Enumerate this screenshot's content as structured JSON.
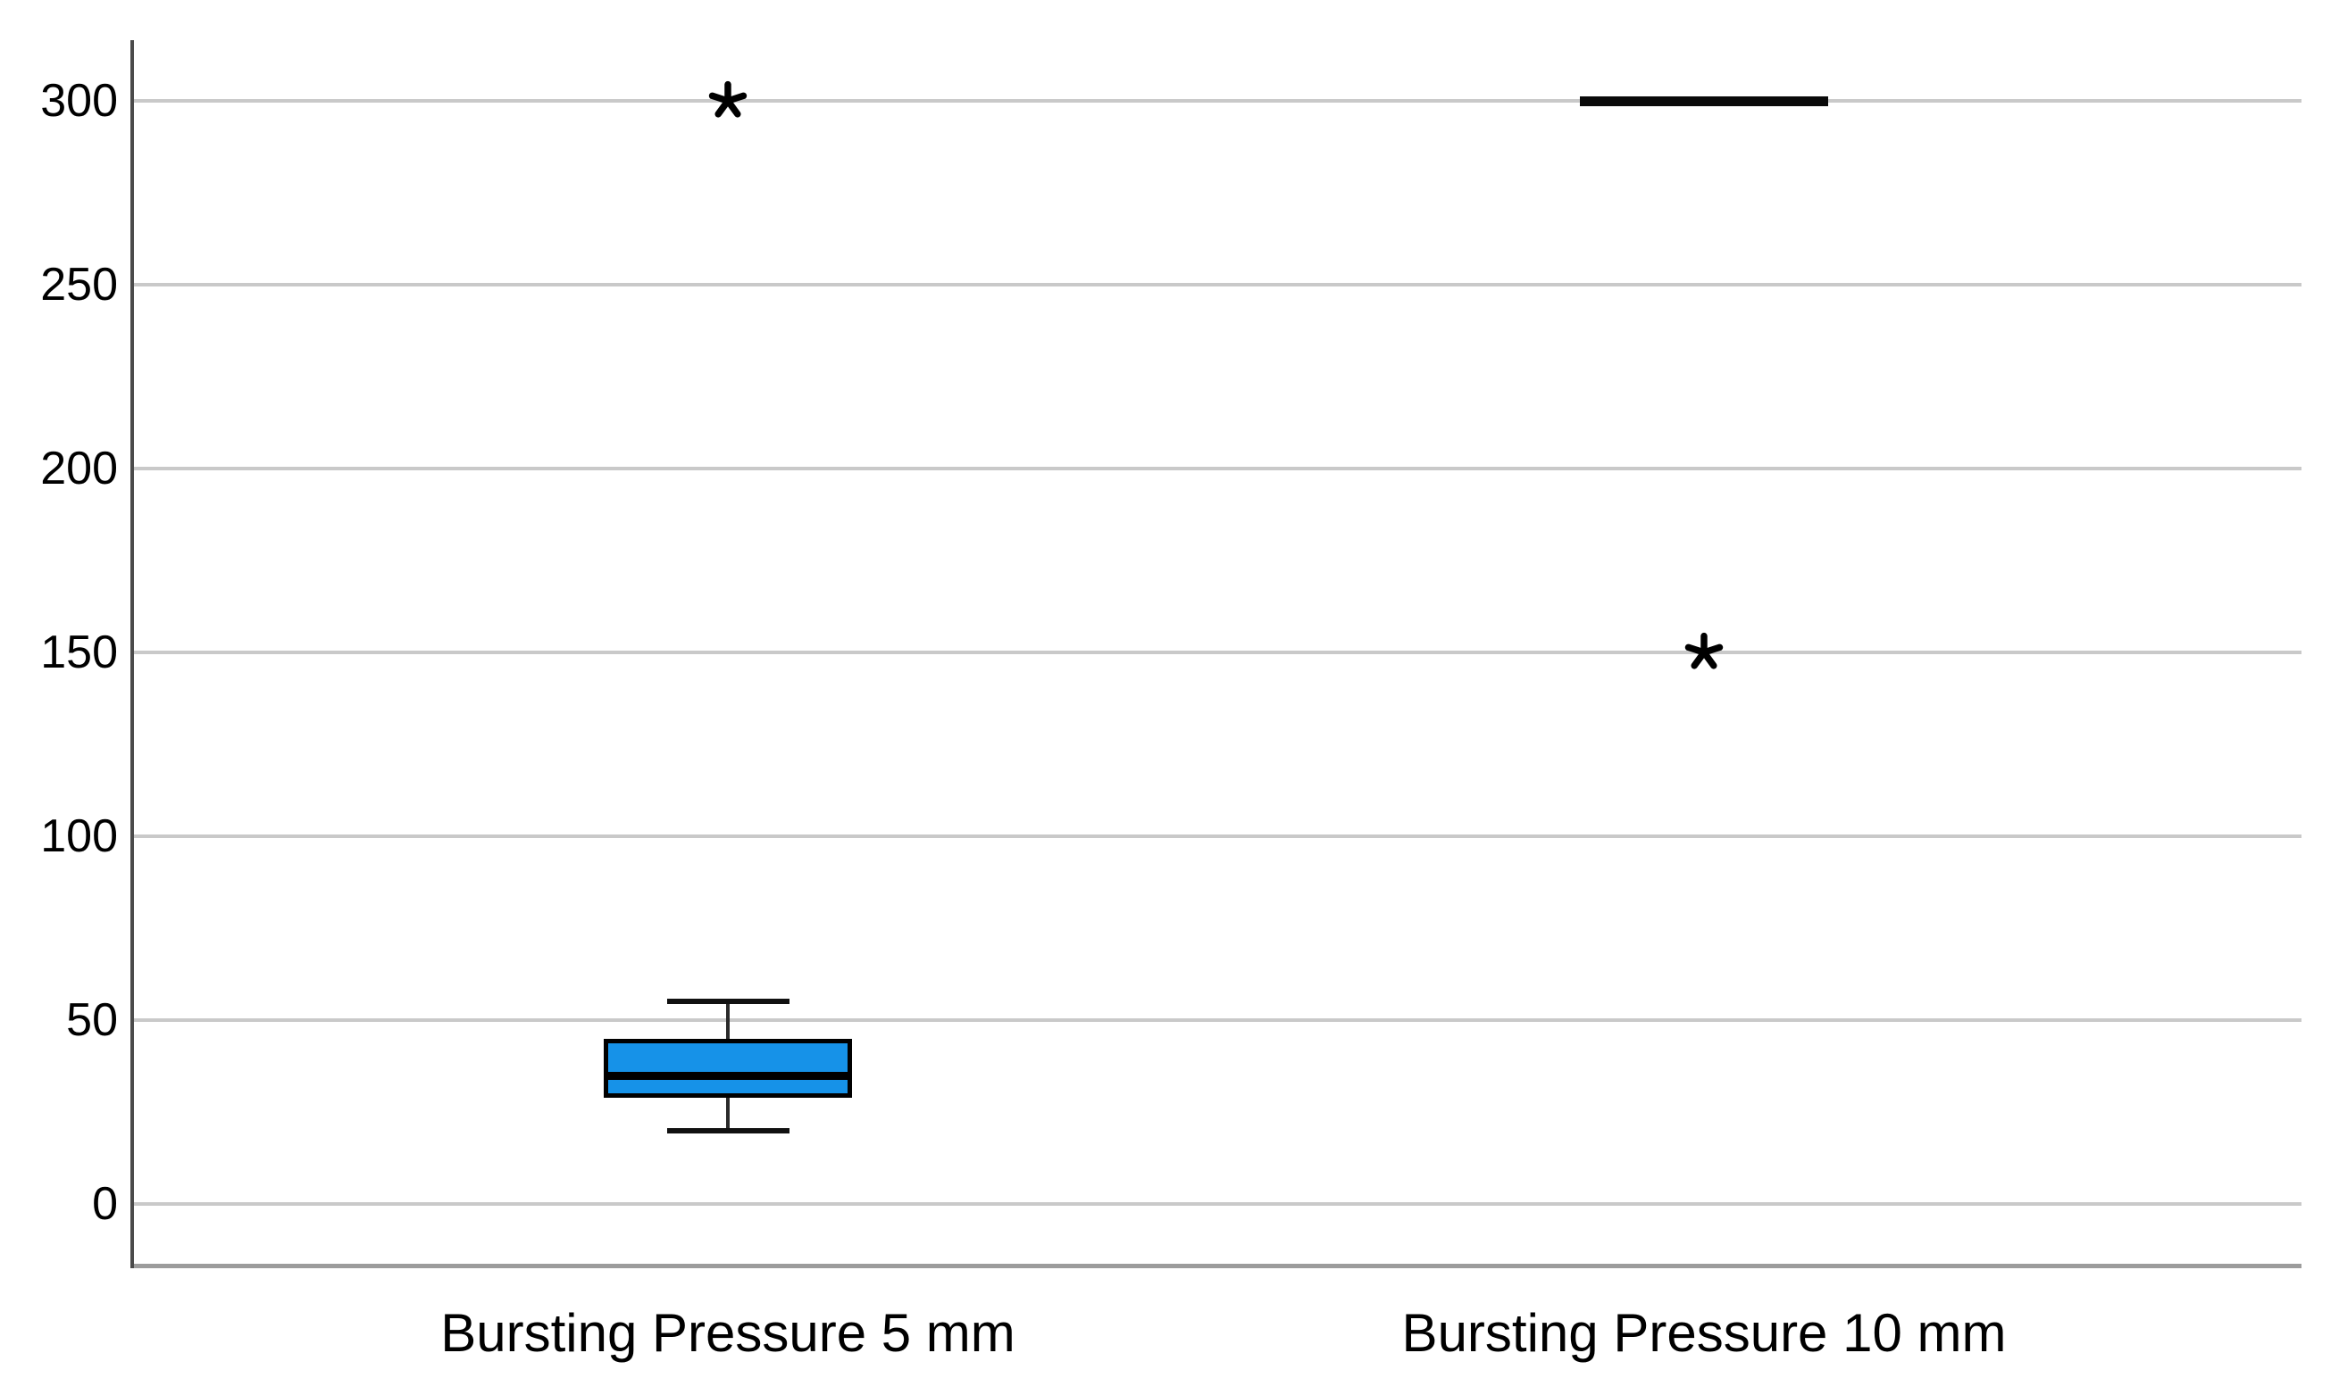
{
  "chart_data": {
    "type": "boxplot",
    "title": "",
    "xlabel": "",
    "ylabel": "",
    "ylim": [
      -20,
      320
    ],
    "yticks": [
      300,
      250,
      200,
      150,
      100,
      50,
      0
    ],
    "grid": "horizontal",
    "legend": "none",
    "categories": [
      "Bursting Pressure 5 mm",
      "Bursting Pressure 10 mm"
    ],
    "series": [
      {
        "name": "Bursting Pressure 5 mm",
        "whisker_low": 20,
        "q1": 30,
        "median": 35,
        "q3": 45,
        "whisker_high": 55,
        "outliers": [
          300
        ]
      },
      {
        "name": "Bursting Pressure 10 mm",
        "whisker_low": 300,
        "q1": 300,
        "median": 300,
        "q3": 300,
        "whisker_high": 300,
        "outliers": [
          150
        ]
      }
    ],
    "outlier_marker": "asterisk-star",
    "colors": {
      "box_fill": "#1692e8",
      "box_border": "#000000",
      "median": "#000000",
      "whisker": "#2a2a2a",
      "gridline": "#c9c9c9",
      "y_axis": "#4b4b4b",
      "x_baseline": "#9c9c9c",
      "outlier": "#000000",
      "text": "#000000"
    }
  }
}
